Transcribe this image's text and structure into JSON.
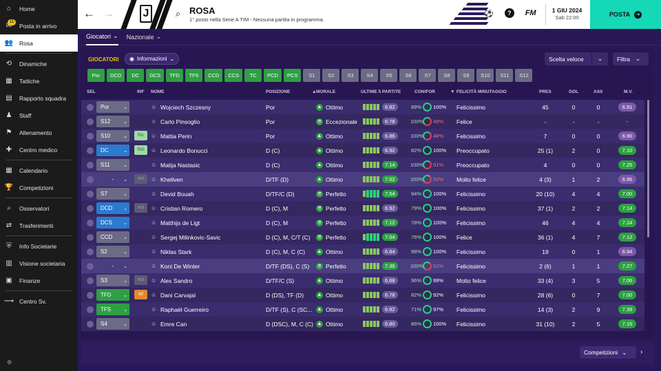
{
  "sidebar": {
    "items": [
      {
        "label": "Home",
        "icon": "home-icon"
      },
      {
        "label": "Posta in arrivo",
        "icon": "inbox-icon",
        "badge": "11"
      },
      {
        "label": "Rosa",
        "icon": "squad-icon",
        "active": true
      },
      {
        "label": "Dinamiche",
        "icon": "dynamics-icon"
      },
      {
        "label": "Tattiche",
        "icon": "tactics-icon"
      },
      {
        "label": "Rapporto squadra",
        "icon": "report-icon"
      },
      {
        "label": "Staff",
        "icon": "staff-icon"
      },
      {
        "label": "Allenamento",
        "icon": "training-icon"
      },
      {
        "label": "Centro medico",
        "icon": "medical-icon"
      },
      {
        "label": "Calendario",
        "icon": "calendar-icon"
      },
      {
        "label": "Competizioni",
        "icon": "trophy-icon"
      },
      {
        "label": "Osservatori",
        "icon": "scouting-icon"
      },
      {
        "label": "Trasferimenti",
        "icon": "transfers-icon"
      },
      {
        "label": "Info Societarie",
        "icon": "club-info-icon"
      },
      {
        "label": "Visione societaria",
        "icon": "club-vision-icon"
      },
      {
        "label": "Finanze",
        "icon": "finances-icon"
      },
      {
        "label": "Centro Sv.",
        "icon": "development-icon"
      }
    ]
  },
  "header": {
    "title": "ROSA",
    "subtitle": "1° posto nella Serie A TIM - Nessuna partita in programma.",
    "date": "1 GIU 2024",
    "time": "Sab 22:00",
    "posta_label": "POSTA",
    "fm_label": "FM"
  },
  "subtabs": [
    {
      "label": "Giocatori"
    },
    {
      "label": "Nazionale"
    }
  ],
  "toolbar": {
    "section": "GIOCATORI",
    "view": "Informazioni",
    "quick": "Scelta veloce",
    "filter": "Filtra"
  },
  "chips": [
    {
      "label": "Por",
      "on": true
    },
    {
      "label": "DCD",
      "on": true
    },
    {
      "label": "DC",
      "on": true
    },
    {
      "label": "DCS",
      "on": true
    },
    {
      "label": "TFD",
      "on": true
    },
    {
      "label": "TFS",
      "on": true
    },
    {
      "label": "CCD",
      "on": true
    },
    {
      "label": "CCS",
      "on": true
    },
    {
      "label": "TC",
      "on": true
    },
    {
      "label": "PCD",
      "on": true
    },
    {
      "label": "PCS",
      "on": true
    },
    {
      "label": "S1",
      "on": false
    },
    {
      "label": "S2",
      "on": false
    },
    {
      "label": "S3",
      "on": false
    },
    {
      "label": "S4",
      "on": false
    },
    {
      "label": "S5",
      "on": false
    },
    {
      "label": "S6",
      "on": false
    },
    {
      "label": "S7",
      "on": false
    },
    {
      "label": "S8",
      "on": false
    },
    {
      "label": "S9",
      "on": false
    },
    {
      "label": "S10",
      "on": false
    },
    {
      "label": "S11",
      "on": false
    },
    {
      "label": "S12",
      "on": false
    }
  ],
  "columns": {
    "sel": "SEL",
    "inf": "INF",
    "nome": "NOME",
    "posizione": "POSIZIONE",
    "morale": "MORALE",
    "ultime": "ULTIME 5 PARTITE",
    "confor": "CON/FOR",
    "felicita": "FELICITÀ MINUTAGGIO",
    "pres": "PRES",
    "gol": "GOL",
    "ass": "ASS",
    "mv": "M.V."
  },
  "players": [
    {
      "sel": "Por",
      "selColor": "gray",
      "inf": "",
      "name": "Wojciech Szczesny",
      "pos": "Por",
      "morale": "Ottimo",
      "form": [
        3,
        3,
        3,
        3,
        3
      ],
      "last": "6.82",
      "lastGreen": false,
      "con": "89%",
      "fit": "100%",
      "fitRed": false,
      "fel": "Felicissimo",
      "pres": "45",
      "gol": "0",
      "ass": "0",
      "mv": "6.91",
      "mvGreen": false
    },
    {
      "sel": "S12",
      "selColor": "gray",
      "inf": "",
      "name": "Carlo Pinsoglio",
      "pos": "Por",
      "morale": "Eccezionale",
      "form": [
        3,
        3,
        3,
        3,
        3
      ],
      "last": "6.78",
      "lastGreen": false,
      "con": "100%",
      "fit": "48%",
      "fitRed": true,
      "fel": "Felice",
      "pres": "-",
      "gol": "-",
      "ass": "-",
      "mv": "-",
      "mvGreen": null
    },
    {
      "sel": "S10",
      "selColor": "gray",
      "inf": "Ric",
      "infColor": "green",
      "name": "Mattia Perin",
      "pos": "Por",
      "morale": "Ottimo",
      "form": [
        3,
        3,
        3,
        3,
        3
      ],
      "last": "6.86",
      "lastGreen": false,
      "con": "100%",
      "fit": "48%",
      "fitRed": true,
      "fel": "Felicissimo",
      "pres": "7",
      "gol": "0",
      "ass": "0",
      "mv": "6.90",
      "mvGreen": false
    },
    {
      "sel": "DC",
      "selColor": "blue",
      "inf": "RiG",
      "infColor": "green",
      "name": "Leonardo Bonucci",
      "pos": "D (C)",
      "morale": "Ottimo",
      "form": [
        3,
        3,
        3,
        3,
        3
      ],
      "last": "6.92",
      "lastGreen": false,
      "con": "82%",
      "fit": "100%",
      "fitRed": false,
      "fel": "Preoccupato",
      "pres": "25 (1)",
      "gol": "2",
      "ass": "0",
      "mv": "7.10",
      "mvGreen": true
    },
    {
      "sel": "S11",
      "selColor": "gray",
      "inf": "",
      "name": "Matija Nastasic",
      "pos": "D (C)",
      "morale": "Ottimo",
      "form": [
        3,
        3,
        3,
        3,
        3
      ],
      "last": "7.14",
      "lastGreen": true,
      "con": "100%",
      "fit": "51%",
      "fitRed": true,
      "fel": "Preoccupato",
      "pres": "4",
      "gol": "0",
      "ass": "0",
      "mv": "7.25",
      "mvGreen": true
    },
    {
      "sel": "-",
      "selColor": "plain",
      "inf": "nUt",
      "infColor": "gray",
      "name": "Khellven",
      "pos": "D/TF (D)",
      "morale": "Ottimo",
      "form": [
        3,
        3,
        3,
        3,
        3
      ],
      "last": "7.02",
      "lastGreen": true,
      "con": "100%",
      "fit": "52%",
      "fitRed": true,
      "fel": "Molto felice",
      "pres": "4 (3)",
      "gol": "1",
      "ass": "2",
      "mv": "6.96",
      "mvGreen": false
    },
    {
      "sel": "S7",
      "selColor": "gray",
      "inf": "",
      "name": "Devid Bouah",
      "pos": "D/TF/C (D)",
      "morale": "Perfetto",
      "form": [
        3,
        4,
        4,
        4,
        4
      ],
      "last": "7.54",
      "lastGreen": true,
      "con": "94%",
      "fit": "100%",
      "fitRed": false,
      "fel": "Felicissimo",
      "pres": "20 (10)",
      "gol": "4",
      "ass": "4",
      "mv": "7.00",
      "mvGreen": true
    },
    {
      "sel": "DCD",
      "selColor": "blue",
      "inf": "nUt",
      "infColor": "gray",
      "name": "Cristian Romero",
      "pos": "D (C), M",
      "morale": "Perfetto",
      "form": [
        3,
        3,
        3,
        3,
        3
      ],
      "last": "6.92",
      "lastGreen": false,
      "con": "79%",
      "fit": "100%",
      "fitRed": false,
      "fel": "Felicissimo",
      "pres": "37 (1)",
      "gol": "2",
      "ass": "2",
      "mv": "7.14",
      "mvGreen": true
    },
    {
      "sel": "DCS",
      "selColor": "blue",
      "inf": "",
      "name": "Matthijs de Ligt",
      "pos": "D (C), M",
      "morale": "Perfetto",
      "form": [
        3,
        3,
        3,
        3,
        3
      ],
      "last": "7.12",
      "lastGreen": true,
      "con": "78%",
      "fit": "100%",
      "fitRed": false,
      "fel": "Felicissimo",
      "pres": "46",
      "gol": "4",
      "ass": "4",
      "mv": "7.24",
      "mvGreen": true
    },
    {
      "sel": "CCD",
      "selColor": "gray",
      "inf": "",
      "name": "Sergej Milinkovic-Savic",
      "pos": "D (C), M, C/T (C)",
      "morale": "Perfetto",
      "form": [
        3,
        4,
        4,
        4,
        4
      ],
      "last": "7.04",
      "lastGreen": true,
      "con": "76%",
      "fit": "100%",
      "fitRed": false,
      "fel": "Felice",
      "pres": "36 (1)",
      "gol": "4",
      "ass": "7",
      "mv": "7.12",
      "mvGreen": true
    },
    {
      "sel": "S2",
      "selColor": "gray",
      "inf": "",
      "name": "Niklas Stark",
      "pos": "D (C), M, C (C)",
      "morale": "Ottimo",
      "form": [
        3,
        3,
        3,
        3,
        3
      ],
      "last": "6.84",
      "lastGreen": false,
      "con": "98%",
      "fit": "100%",
      "fitRed": false,
      "fel": "Felicissimo",
      "pres": "19",
      "gol": "0",
      "ass": "1",
      "mv": "6.94",
      "mvGreen": false
    },
    {
      "sel": "-",
      "selColor": "plain",
      "inf": "",
      "name": "Koni De Winter",
      "pos": "D/TF (DS), C (S)",
      "morale": "Perfetto",
      "form": [
        3,
        3,
        3,
        3,
        3
      ],
      "last": "7.36",
      "lastGreen": true,
      "con": "100%",
      "fit": "51%",
      "fitRed": true,
      "fel": "Felicissimo",
      "pres": "2 (6)",
      "gol": "1",
      "ass": "1",
      "mv": "7.27",
      "mvGreen": true
    },
    {
      "sel": "S3",
      "selColor": "gray",
      "inf": "nUt",
      "infColor": "gray",
      "name": "Alex Sandro",
      "pos": "D/TF/C (S)",
      "morale": "Ottimo",
      "form": [
        3,
        3,
        3,
        3,
        3
      ],
      "last": "6.68",
      "lastGreen": false,
      "con": "96%",
      "fit": "99%",
      "fitRed": false,
      "fel": "Molto felice",
      "pres": "33 (4)",
      "gol": "3",
      "ass": "5",
      "mv": "7.06",
      "mvGreen": true
    },
    {
      "sel": "TFD",
      "selColor": "green",
      "inf": "Inf",
      "infColor": "orange",
      "name": "Dani Carvajal",
      "pos": "D (DS), TF (D)",
      "morale": "Ottimo",
      "form": [
        3,
        3,
        3,
        3,
        3
      ],
      "last": "6.78",
      "lastGreen": false,
      "con": "82%",
      "fit": "92%",
      "fitRed": false,
      "fel": "Felicissimo",
      "pres": "28 (6)",
      "gol": "0",
      "ass": "7",
      "mv": "7.00",
      "mvGreen": true
    },
    {
      "sel": "TFS",
      "selColor": "green",
      "inf": "",
      "name": "Raphaël Guerreiro",
      "pos": "D/TF (S), C (SC...",
      "morale": "Ottimo",
      "form": [
        3,
        3,
        3,
        3,
        3
      ],
      "last": "6.92",
      "lastGreen": false,
      "con": "71%",
      "fit": "97%",
      "fitRed": false,
      "fel": "Felicissimo",
      "pres": "14 (3)",
      "gol": "2",
      "ass": "9",
      "mv": "7.39",
      "mvGreen": true
    },
    {
      "sel": "S4",
      "selColor": "gray",
      "inf": "",
      "name": "Emre Can",
      "pos": "D (DSC), M, C (C)",
      "morale": "Ottimo",
      "form": [
        3,
        3,
        3,
        3,
        3
      ],
      "last": "6.80",
      "lastGreen": false,
      "con": "86%",
      "fit": "100%",
      "fitRed": false,
      "fel": "Felicissimo",
      "pres": "31 (10)",
      "gol": "2",
      "ass": "5",
      "mv": "7.15",
      "mvGreen": true
    }
  ],
  "bottom": {
    "competizioni": "Competizioni"
  }
}
